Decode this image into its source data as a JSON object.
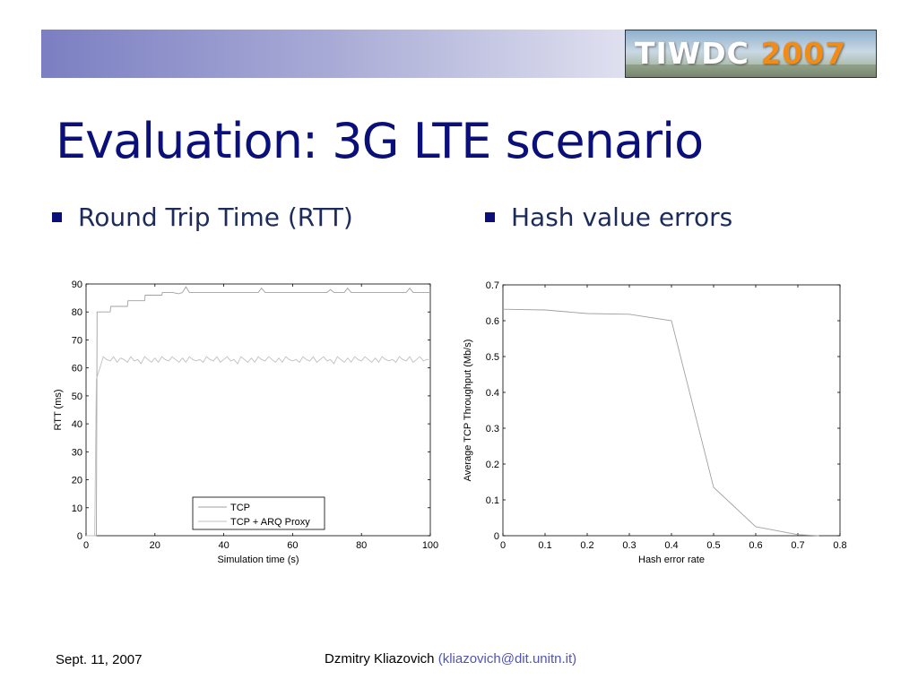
{
  "slide": {
    "logo": {
      "part1": "TIWDC",
      "part2": "2007"
    },
    "title": "Evaluation: 3G LTE scenario",
    "bullets": [
      "Round Trip Time (RTT)",
      "Hash value errors"
    ],
    "footer": {
      "date": "Sept. 11, 2007",
      "author": "Dzmitry Kliazovich",
      "email": "(kliazovich@dit.unitn.it)"
    }
  },
  "chart_data": [
    {
      "type": "line",
      "xlabel": "Simulation time (s)",
      "ylabel": "RTT (ms)",
      "xlim": [
        0,
        100
      ],
      "ylim": [
        0,
        90
      ],
      "xticks": [
        "0",
        "20",
        "40",
        "60",
        "80",
        "100"
      ],
      "yticks": [
        "0",
        "10",
        "20",
        "30",
        "40",
        "50",
        "60",
        "70",
        "80",
        "90"
      ],
      "legend": {
        "position": "bottom-center"
      },
      "series": [
        {
          "name": "TCP",
          "color": "#a0a0a0",
          "x": [
            0,
            3,
            3.2,
            7,
            7.2,
            12,
            12.2,
            17,
            17.2,
            22,
            22.2,
            25,
            27,
            28,
            29,
            30,
            33,
            50,
            51,
            52,
            70,
            71,
            72,
            75,
            76,
            77,
            93,
            94,
            95,
            100
          ],
          "y": [
            0,
            0,
            80,
            80,
            82,
            82,
            84,
            84,
            86,
            86,
            87,
            87,
            86.5,
            87,
            89,
            87,
            87,
            87,
            88.5,
            87,
            87,
            88,
            87,
            87,
            88.5,
            87,
            87,
            88.5,
            87,
            87
          ]
        },
        {
          "name": "TCP + ARQ Proxy",
          "color": "#c0c0c0",
          "x": [
            0,
            2.5,
            3,
            4,
            5,
            6,
            7,
            8,
            9,
            10,
            11,
            12,
            13,
            14,
            15,
            16,
            17,
            18,
            19,
            20,
            21,
            22,
            23,
            24,
            25,
            26,
            27,
            28,
            29,
            30,
            31,
            32,
            33,
            34,
            35,
            36,
            37,
            38,
            39,
            40,
            41,
            42,
            43,
            44,
            45,
            46,
            47,
            48,
            49,
            50,
            51,
            52,
            53,
            54,
            55,
            56,
            57,
            58,
            59,
            60,
            61,
            62,
            63,
            64,
            65,
            66,
            67,
            68,
            69,
            70,
            71,
            72,
            73,
            74,
            75,
            76,
            77,
            78,
            79,
            80,
            81,
            82,
            83,
            84,
            85,
            86,
            87,
            88,
            89,
            90,
            91,
            92,
            93,
            94,
            95,
            96,
            97,
            98,
            99,
            100
          ],
          "y": [
            0,
            0,
            56,
            60,
            64,
            63,
            62.5,
            64,
            62,
            63.5,
            63,
            62,
            64,
            62.5,
            63,
            61.5,
            64,
            63,
            62,
            63.5,
            62,
            64,
            63,
            62.5,
            64,
            63,
            62,
            63.5,
            62,
            64,
            63,
            62.5,
            63,
            62,
            64,
            63,
            62.5,
            64,
            62,
            63,
            64,
            62.5,
            63,
            61.5,
            64,
            63,
            62,
            63.5,
            62,
            64,
            63,
            62.5,
            64,
            63,
            62,
            63.5,
            62,
            64,
            63,
            62.5,
            63,
            62,
            64,
            63,
            62.5,
            64,
            62,
            63,
            64,
            62.5,
            63,
            61.5,
            64,
            63,
            62,
            63.5,
            62,
            64,
            63,
            62.5,
            64,
            63,
            62,
            63.5,
            62,
            64,
            63,
            62.5,
            63,
            62,
            64,
            63,
            62.5,
            64,
            62,
            63,
            64,
            62.5,
            63,
            63
          ]
        }
      ]
    },
    {
      "type": "line",
      "xlabel": "Hash error rate",
      "ylabel": "Average TCP Throughput (Mb/s)",
      "xlim": [
        0,
        0.8
      ],
      "ylim": [
        0,
        0.7
      ],
      "xticks": [
        "0",
        "0.1",
        "0.2",
        "0.3",
        "0.4",
        "0.5",
        "0.6",
        "0.7",
        "0.8"
      ],
      "yticks": [
        "0",
        "0.1",
        "0.2",
        "0.3",
        "0.4",
        "0.5",
        "0.6",
        "0.7"
      ],
      "series": [
        {
          "color": "#a0a0a0",
          "x": [
            0,
            0.1,
            0.2,
            0.3,
            0.4,
            0.5,
            0.6,
            0.7,
            0.75
          ],
          "y": [
            0.632,
            0.63,
            0.62,
            0.618,
            0.6,
            0.135,
            0.025,
            0.003,
            0
          ]
        }
      ]
    }
  ]
}
